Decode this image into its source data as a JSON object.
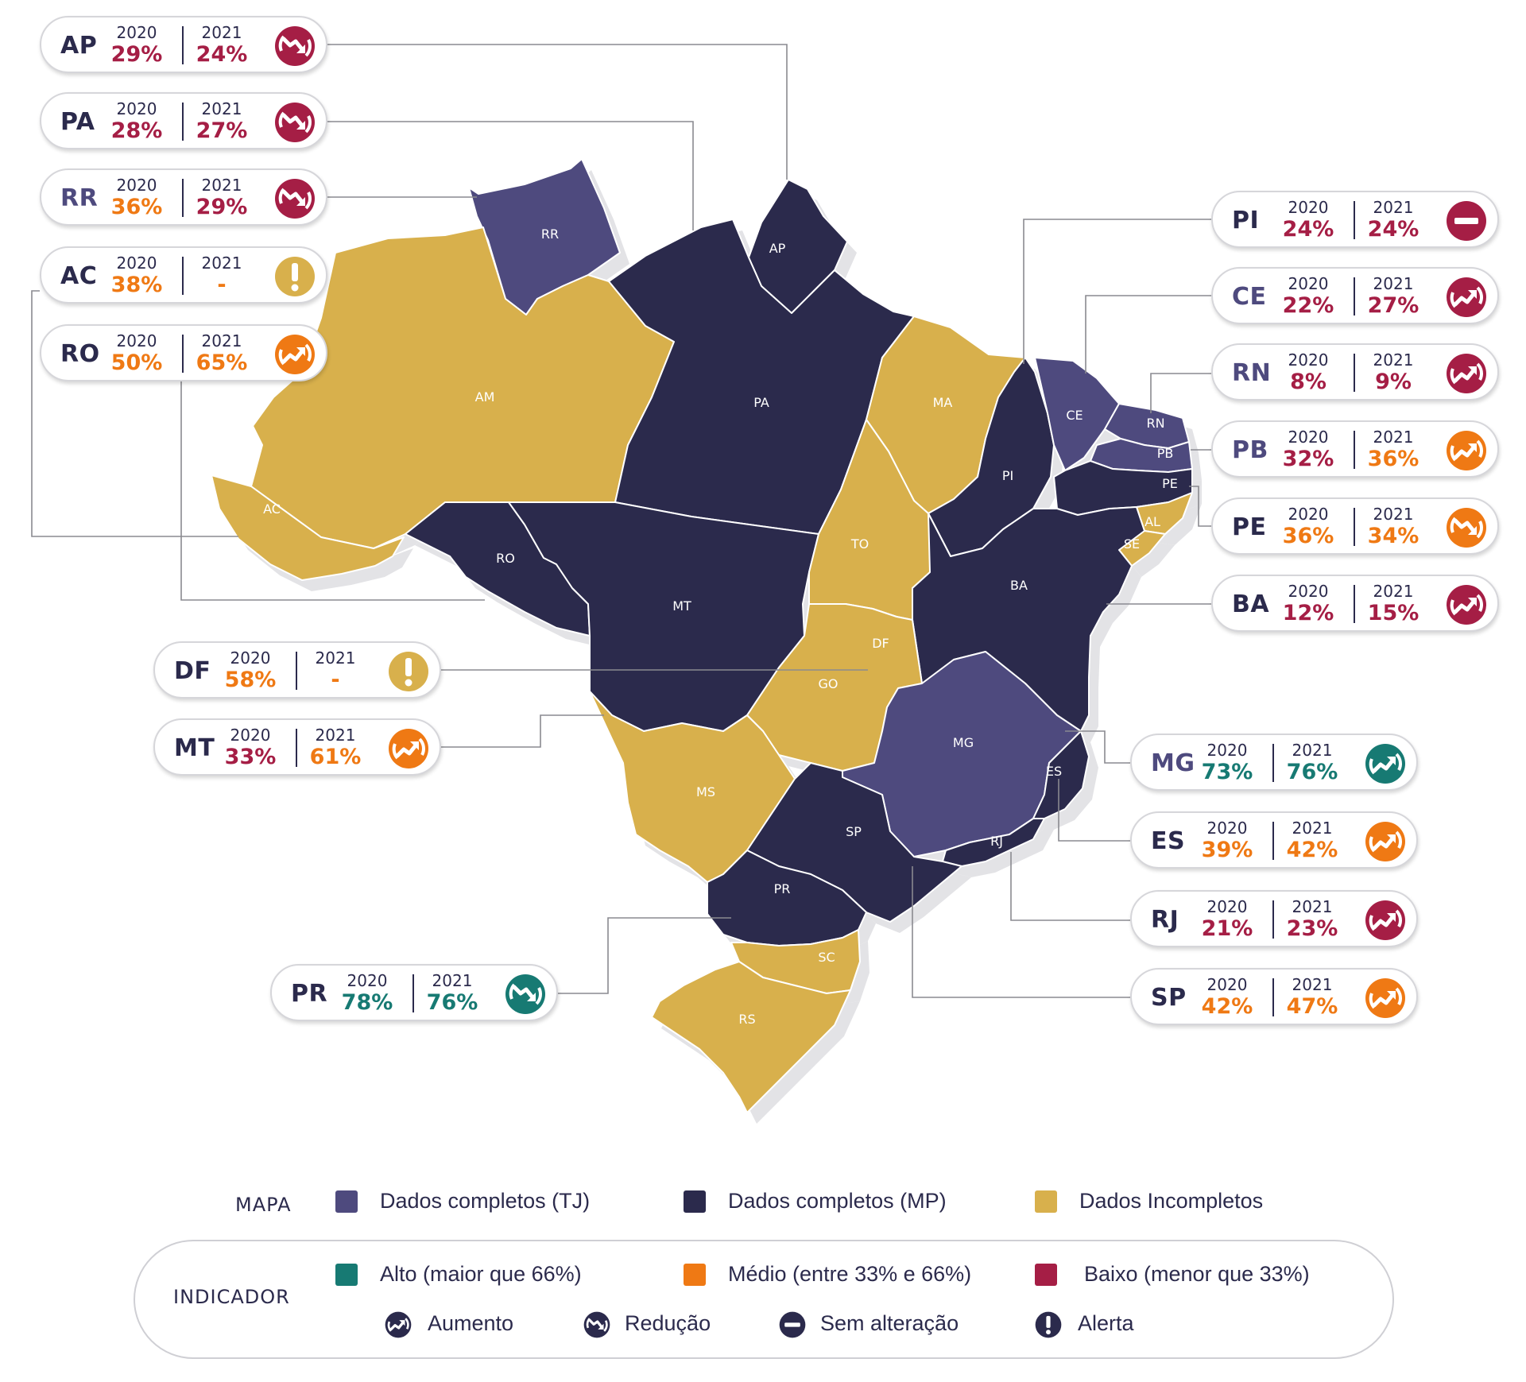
{
  "colors": {
    "tj": "#4e4a7e",
    "mp": "#2b2a4c",
    "incomplete": "#d8b04c",
    "alto": "#177a73",
    "medio": "#ef7914",
    "baixo": "#a51e45",
    "alerta": "#d8b04c",
    "shadow": "#e3e3e6"
  },
  "map": {
    "state_labels": [
      "RR",
      "AP",
      "AM",
      "PA",
      "MA",
      "CE",
      "RN",
      "PB",
      "PE",
      "AL",
      "SE",
      "PI",
      "AC",
      "RO",
      "MT",
      "TO",
      "BA",
      "DF",
      "GO",
      "MG",
      "ES",
      "RJ",
      "MS",
      "SP",
      "PR",
      "SC",
      "RS"
    ]
  },
  "cards": [
    {
      "state": "AP",
      "y2020": "2020",
      "v2020": "29%",
      "c2020": "baixo",
      "y2021": "2021",
      "v2021": "24%",
      "c2021": "baixo",
      "indicator": "reducao",
      "ind_color": "baixo",
      "icon": "reducao-icon"
    },
    {
      "state": "PA",
      "y2020": "2020",
      "v2020": "28%",
      "c2020": "baixo",
      "y2021": "2021",
      "v2021": "27%",
      "c2021": "baixo",
      "indicator": "reducao",
      "ind_color": "baixo",
      "icon": "reducao-icon"
    },
    {
      "state": "RR",
      "y2020": "2020",
      "v2020": "36%",
      "c2020": "medio",
      "y2021": "2021",
      "v2021": "29%",
      "c2021": "baixo",
      "indicator": "reducao",
      "ind_color": "baixo",
      "icon": "reducao-icon"
    },
    {
      "state": "AC",
      "y2020": "2020",
      "v2020": "38%",
      "c2020": "medio",
      "y2021": "2021",
      "v2021": "-",
      "c2021": "medio",
      "indicator": "alerta",
      "ind_color": "alerta",
      "icon": "alerta-icon"
    },
    {
      "state": "RO",
      "y2020": "2020",
      "v2020": "50%",
      "c2020": "medio",
      "y2021": "2021",
      "v2021": "65%",
      "c2021": "medio",
      "indicator": "aumento",
      "ind_color": "medio",
      "icon": "aumento-icon"
    },
    {
      "state": "DF",
      "y2020": "2020",
      "v2020": "58%",
      "c2020": "medio",
      "y2021": "2021",
      "v2021": "-",
      "c2021": "medio",
      "indicator": "alerta",
      "ind_color": "alerta",
      "icon": "alerta-icon"
    },
    {
      "state": "MT",
      "y2020": "2020",
      "v2020": "33%",
      "c2020": "baixo",
      "y2021": "2021",
      "v2021": "61%",
      "c2021": "medio",
      "indicator": "aumento",
      "ind_color": "medio",
      "icon": "aumento-icon"
    },
    {
      "state": "PR",
      "y2020": "2020",
      "v2020": "78%",
      "c2020": "alto",
      "y2021": "2021",
      "v2021": "76%",
      "c2021": "alto",
      "indicator": "reducao",
      "ind_color": "alto",
      "icon": "reducao-icon"
    },
    {
      "state": "PI",
      "y2020": "2020",
      "v2020": "24%",
      "c2020": "baixo",
      "y2021": "2021",
      "v2021": "24%",
      "c2021": "baixo",
      "indicator": "sem_alteracao",
      "ind_color": "baixo",
      "icon": "sem-alteracao-icon"
    },
    {
      "state": "CE",
      "y2020": "2020",
      "v2020": "22%",
      "c2020": "baixo",
      "y2021": "2021",
      "v2021": "27%",
      "c2021": "baixo",
      "indicator": "aumento",
      "ind_color": "baixo",
      "icon": "aumento-icon"
    },
    {
      "state": "RN",
      "y2020": "2020",
      "v2020": "8%",
      "c2020": "baixo",
      "y2021": "2021",
      "v2021": "9%",
      "c2021": "baixo",
      "indicator": "aumento",
      "ind_color": "baixo",
      "icon": "aumento-icon"
    },
    {
      "state": "PB",
      "y2020": "2020",
      "v2020": "32%",
      "c2020": "baixo",
      "y2021": "2021",
      "v2021": "36%",
      "c2021": "medio",
      "indicator": "aumento",
      "ind_color": "medio",
      "icon": "aumento-icon"
    },
    {
      "state": "PE",
      "y2020": "2020",
      "v2020": "36%",
      "c2020": "medio",
      "y2021": "2021",
      "v2021": "34%",
      "c2021": "medio",
      "indicator": "reducao",
      "ind_color": "medio",
      "icon": "reducao-icon"
    },
    {
      "state": "BA",
      "y2020": "2020",
      "v2020": "12%",
      "c2020": "baixo",
      "y2021": "2021",
      "v2021": "15%",
      "c2021": "baixo",
      "indicator": "aumento",
      "ind_color": "baixo",
      "icon": "aumento-icon"
    },
    {
      "state": "MG",
      "y2020": "2020",
      "v2020": "73%",
      "c2020": "alto",
      "y2021": "2021",
      "v2021": "76%",
      "c2021": "alto",
      "indicator": "aumento",
      "ind_color": "alto",
      "icon": "aumento-icon"
    },
    {
      "state": "ES",
      "y2020": "2020",
      "v2020": "39%",
      "c2020": "medio",
      "y2021": "2021",
      "v2021": "42%",
      "c2021": "medio",
      "indicator": "aumento",
      "ind_color": "medio",
      "icon": "aumento-icon"
    },
    {
      "state": "RJ",
      "y2020": "2020",
      "v2020": "21%",
      "c2020": "baixo",
      "y2021": "2021",
      "v2021": "23%",
      "c2021": "baixo",
      "indicator": "aumento",
      "ind_color": "baixo",
      "icon": "aumento-icon"
    },
    {
      "state": "SP",
      "y2020": "2020",
      "v2020": "42%",
      "c2020": "medio",
      "y2021": "2021",
      "v2021": "47%",
      "c2021": "medio",
      "indicator": "aumento",
      "ind_color": "medio",
      "icon": "aumento-icon"
    }
  ],
  "legend": {
    "mapa_title": "MAPA",
    "mapa_items": [
      {
        "label": "Dados completos (TJ)",
        "color": "tj"
      },
      {
        "label": "Dados completos (MP)",
        "color": "mp"
      },
      {
        "label": "Dados Incompletos",
        "color": "incomplete"
      }
    ],
    "indicador_title": "INDICADOR",
    "indicador_items": [
      {
        "label": "Alto (maior que 66%)",
        "color": "alto"
      },
      {
        "label": "Médio (entre 33% e 66%)",
        "color": "medio"
      },
      {
        "label": "Baixo (menor que 33%)",
        "color": "baixo"
      }
    ],
    "icon_items": [
      {
        "label": "Aumento",
        "icon": "aumento-icon"
      },
      {
        "label": "Redução",
        "icon": "reducao-icon"
      },
      {
        "label": "Sem alteração",
        "icon": "sem-alteracao-icon"
      },
      {
        "label": "Alerta",
        "icon": "alerta-icon"
      }
    ]
  }
}
